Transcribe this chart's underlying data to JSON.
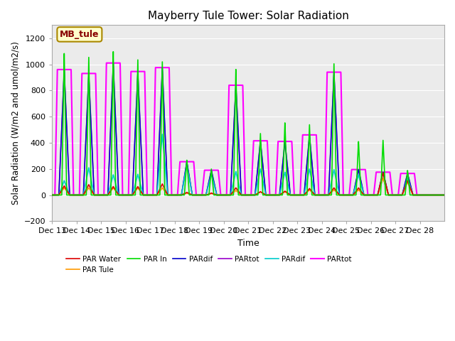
{
  "title": "Mayberry Tule Tower: Solar Radiation",
  "xlabel": "Time",
  "ylabel": "Solar Radiation (W/m2 and umol/m2/s)",
  "ylim": [
    -200,
    1300
  ],
  "yticks": [
    -200,
    0,
    200,
    400,
    600,
    800,
    1000,
    1200
  ],
  "xtick_labels": [
    "Dec 13",
    "Dec 14",
    "Dec 15",
    "Dec 16",
    "Dec 17",
    "Dec 18",
    "Dec 19",
    "Dec 20",
    "Dec 21",
    "Dec 22",
    "Dec 23",
    "Dec 24",
    "Dec 25",
    "Dec 26",
    "Dec 27",
    "Dec 28"
  ],
  "legend_entries": [
    {
      "label": "PAR Water",
      "color": "#dd0000",
      "lw": 1.2
    },
    {
      "label": "PAR Tule",
      "color": "#ff9900",
      "lw": 1.2
    },
    {
      "label": "PAR In",
      "color": "#00dd00",
      "lw": 1.2
    },
    {
      "label": "PARdif",
      "color": "#0000cc",
      "lw": 1.2
    },
    {
      "label": "PARtot",
      "color": "#9900cc",
      "lw": 1.2
    },
    {
      "label": "PARdif",
      "color": "#00cccc",
      "lw": 1.2
    },
    {
      "label": "PARtot",
      "color": "#ff00ff",
      "lw": 1.5
    }
  ],
  "annotation_text": "MB_tule",
  "bg_color": "#ffffff",
  "plot_bg": "#ebebeb",
  "grid_color": "#ffffff",
  "n_days": 16,
  "day_peaks": [
    {
      "green": 1090,
      "magenta": 960,
      "red": 70,
      "orange": 55,
      "blue": 960,
      "purple": 960,
      "cyan": 110
    },
    {
      "green": 1065,
      "magenta": 930,
      "red": 80,
      "orange": 55,
      "blue": 930,
      "purple": 930,
      "cyan": 210
    },
    {
      "green": 1100,
      "magenta": 1010,
      "red": 65,
      "orange": 55,
      "blue": 1010,
      "purple": 1010,
      "cyan": 155
    },
    {
      "green": 1050,
      "magenta": 945,
      "red": 65,
      "orange": 55,
      "blue": 945,
      "purple": 945,
      "cyan": 160
    },
    {
      "green": 1020,
      "magenta": 975,
      "red": 85,
      "orange": 55,
      "blue": 975,
      "purple": 975,
      "cyan": 465
    },
    {
      "green": 270,
      "magenta": 255,
      "red": 20,
      "orange": 15,
      "blue": 255,
      "purple": 255,
      "cyan": 230
    },
    {
      "green": 200,
      "magenta": 190,
      "red": 15,
      "orange": 12,
      "blue": 190,
      "purple": 190,
      "cyan": 160
    },
    {
      "green": 970,
      "magenta": 840,
      "red": 55,
      "orange": 35,
      "blue": 840,
      "purple": 840,
      "cyan": 180
    },
    {
      "green": 475,
      "magenta": 415,
      "red": 25,
      "orange": 25,
      "blue": 415,
      "purple": 415,
      "cyan": 200
    },
    {
      "green": 555,
      "magenta": 410,
      "red": 30,
      "orange": 25,
      "blue": 410,
      "purple": 410,
      "cyan": 175
    },
    {
      "green": 545,
      "magenta": 460,
      "red": 50,
      "orange": 40,
      "blue": 460,
      "purple": 460,
      "cyan": 200
    },
    {
      "green": 1005,
      "magenta": 940,
      "red": 55,
      "orange": 40,
      "blue": 940,
      "purple": 940,
      "cyan": 195
    },
    {
      "green": 415,
      "magenta": 195,
      "red": 55,
      "orange": 40,
      "blue": 195,
      "purple": 195,
      "cyan": 155
    },
    {
      "green": 420,
      "magenta": 175,
      "red": 170,
      "orange": 130,
      "blue": 175,
      "purple": 175,
      "cyan": 130
    },
    {
      "green": 190,
      "magenta": 165,
      "red": 110,
      "orange": 100,
      "blue": 165,
      "purple": 165,
      "cyan": 130
    },
    {
      "green": 0,
      "magenta": 0,
      "red": 0,
      "orange": 0,
      "blue": 0,
      "purple": 0,
      "cyan": 0
    }
  ]
}
